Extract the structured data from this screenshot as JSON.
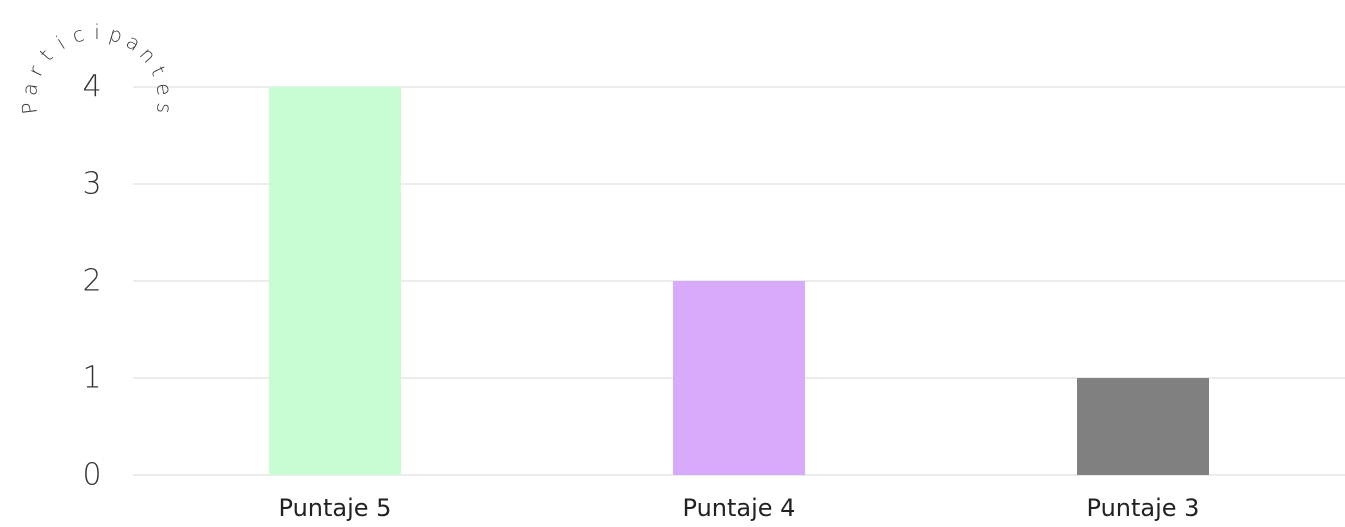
{
  "chart_data": {
    "type": "bar",
    "title": "",
    "xlabel": "",
    "ylabel": "Participantes",
    "categories": [
      "Puntaje 5",
      "Puntaje 4",
      "Puntaje 3"
    ],
    "values": [
      4,
      2,
      1
    ],
    "colors": [
      "#c8fcd3",
      "#d8aafc",
      "#808080"
    ],
    "ylim": [
      0,
      4
    ],
    "yticks": [
      "0",
      "1",
      "2",
      "3",
      "4"
    ],
    "grid": true,
    "legend": "none"
  }
}
